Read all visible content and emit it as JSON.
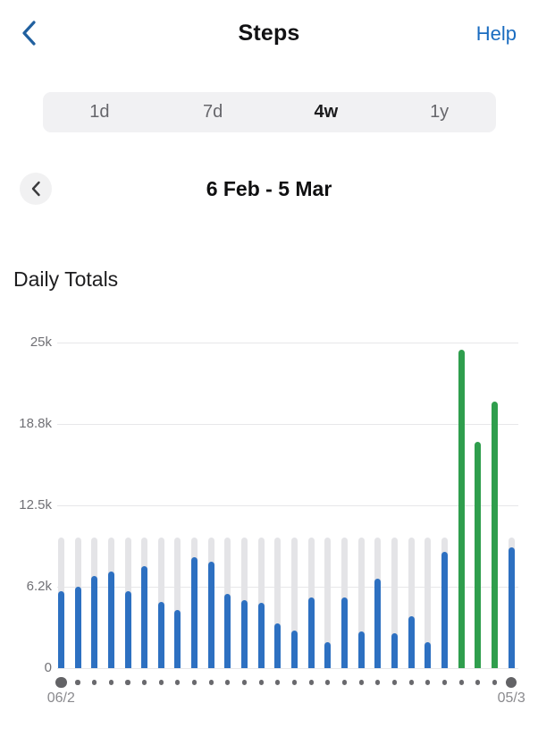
{
  "header": {
    "title": "Steps",
    "help": "Help"
  },
  "period_selector": {
    "options": [
      {
        "label": "1d",
        "selected": false
      },
      {
        "label": "7d",
        "selected": false
      },
      {
        "label": "4w",
        "selected": true
      },
      {
        "label": "1y",
        "selected": false
      }
    ]
  },
  "date_nav": {
    "label": "6 Feb - 5 Mar"
  },
  "section_title": "Daily Totals",
  "colors": {
    "accent_blue": "#1a6cc0",
    "back_chevron_blue": "#20609f",
    "bar_blue": "#2d70c1",
    "bar_green": "#2f9e4d",
    "goal_gray": "#e4e4e7"
  },
  "chart_data": {
    "type": "bar",
    "title": "Daily Totals",
    "unit": "steps",
    "ylim": [
      0,
      25000
    ],
    "y_ticks": [
      {
        "value": 25000,
        "label": "25k"
      },
      {
        "value": 18750,
        "label": "18.8k"
      },
      {
        "value": 12500,
        "label": "12.5k"
      },
      {
        "value": 6250,
        "label": "6.2k"
      },
      {
        "value": 0,
        "label": "0"
      }
    ],
    "x_start_label": "06/2",
    "x_end_label": "05/3",
    "goal_value": 10000,
    "grid": true,
    "values": [
      5900,
      6250,
      7100,
      7400,
      5900,
      7800,
      5100,
      4500,
      8500,
      8200,
      5700,
      5200,
      5000,
      3450,
      2900,
      5400,
      2000,
      5400,
      2800,
      6900,
      2700,
      4000,
      2000,
      8900,
      24450,
      17400,
      20500,
      9300
    ],
    "highlight_indices": [
      24,
      25,
      26
    ],
    "bar_color": "#2d70c1",
    "highlight_color": "#2f9e4d",
    "goal_bar_color": "#e4e4e7"
  }
}
